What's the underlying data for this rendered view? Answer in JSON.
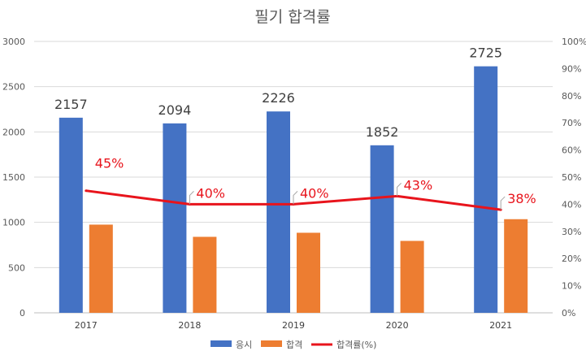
{
  "chart_data": {
    "type": "bar",
    "title": "필기 합격률",
    "categories": [
      "2017",
      "2018",
      "2019",
      "2020",
      "2021"
    ],
    "series": [
      {
        "name": "응시",
        "values": [
          2157,
          2094,
          2226,
          1852,
          2725
        ],
        "color": "#4472c4",
        "data_labels": [
          "2157",
          "2094",
          "2226",
          "1852",
          "2725"
        ]
      },
      {
        "name": "합격",
        "values": [
          975,
          840,
          885,
          795,
          1035
        ],
        "color": "#ed7d31"
      },
      {
        "name": "합격률(%)",
        "type": "line",
        "axis": "secondary",
        "values": [
          45,
          40,
          40,
          43,
          38
        ],
        "color": "#e8141c",
        "data_labels": [
          "45%",
          "40%",
          "40%",
          "43%",
          "38%"
        ]
      }
    ],
    "ylim": [
      0,
      3000
    ],
    "yticks": [
      "0",
      "500",
      "1000",
      "1500",
      "2000",
      "2500",
      "3000"
    ],
    "y2lim": [
      0,
      100
    ],
    "y2ticks": [
      "0%",
      "10%",
      "20%",
      "30%",
      "40%",
      "50%",
      "60%",
      "70%",
      "80%",
      "90%",
      "100%"
    ],
    "grid": true,
    "legend_position": "bottom"
  }
}
